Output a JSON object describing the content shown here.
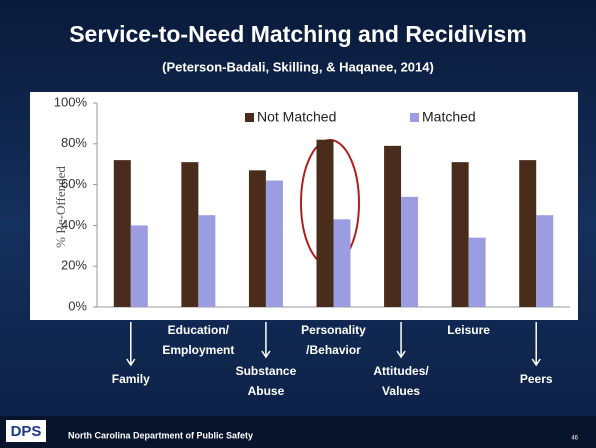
{
  "chart_data": {
    "type": "bar",
    "title": "Service-to-Need Matching and Recidivism",
    "subtitle": "(Peterson-Badali, Skilling, & Haqanee, 2014)",
    "y_label": "% Re-Offended",
    "categories": [
      [
        "Family"
      ],
      [
        "Education/",
        "Employment"
      ],
      [
        "Substance",
        "Abuse"
      ],
      [
        "Personality",
        "/Behavior"
      ],
      [
        "Attitudes/",
        "Values"
      ],
      [
        "Leisure"
      ],
      [
        "Peers"
      ]
    ],
    "series": [
      {
        "name": "Not Matched",
        "color": "#4a2c1c",
        "values": [
          72,
          71,
          67,
          82,
          79,
          71,
          72
        ]
      },
      {
        "name": "Matched",
        "color": "#9c9ce0",
        "values": [
          40,
          45,
          62,
          43,
          54,
          34,
          45
        ]
      }
    ],
    "ylim": [
      0,
      100
    ],
    "yticks": [
      {
        "value": 0,
        "label": "0%"
      },
      {
        "value": 20,
        "label": "20%"
      },
      {
        "value": 40,
        "label": "40%"
      },
      {
        "value": 60,
        "label": "60%"
      },
      {
        "value": 80,
        "label": "80%"
      },
      {
        "value": 100,
        "label": "100%"
      }
    ],
    "grid": false,
    "legend": "top"
  },
  "footer": {
    "logo": "DPS",
    "text": "North Carolina Department of Public Safety",
    "page": "46"
  }
}
